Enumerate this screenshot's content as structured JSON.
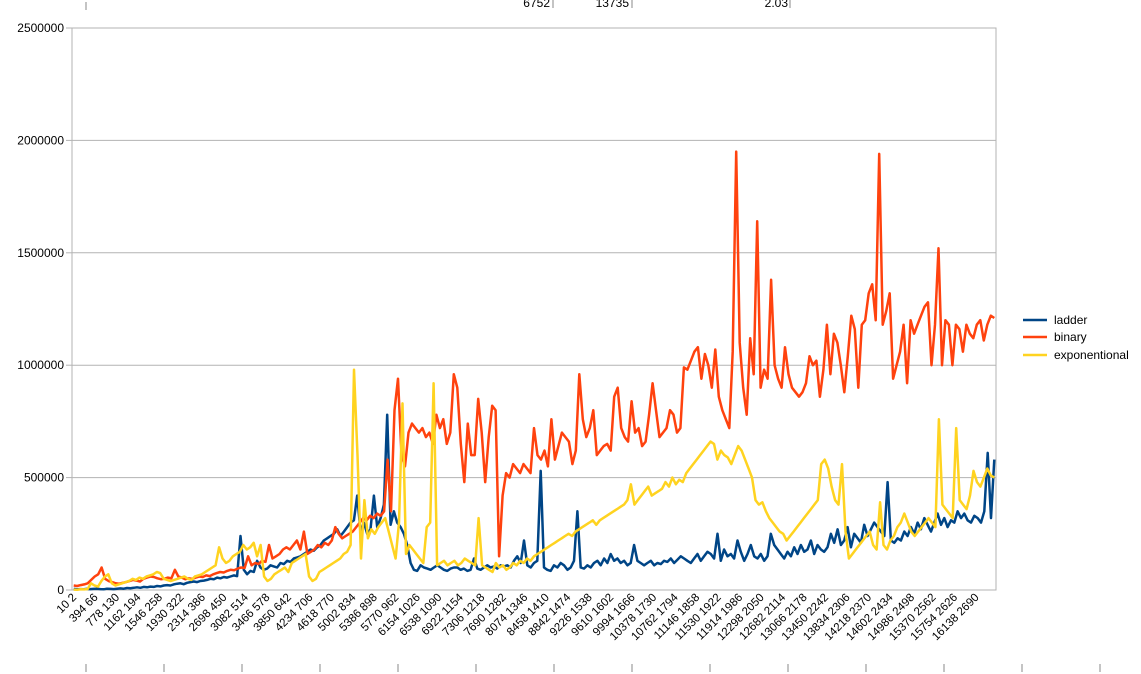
{
  "chart_data": {
    "type": "line",
    "title": "",
    "xlabel": "",
    "ylabel": "",
    "ylim": [
      0,
      2500000
    ],
    "yticks": [
      "0",
      "500000",
      "1000000",
      "1500000",
      "2000000",
      "2500000"
    ],
    "xtick_labels": [
      "10 2",
      "394 66",
      "778 130",
      "1162 194",
      "1546 258",
      "1930 322",
      "2314 386",
      "2698 450",
      "3082 514",
      "3466 578",
      "3850 642",
      "4234 706",
      "4618 770",
      "5002 834",
      "5386 898",
      "5770 962",
      "6154 1026",
      "6538 1090",
      "6922 1154",
      "7306 1218",
      "7690 1282",
      "8074 1346",
      "8458 1410",
      "8842 1474",
      "9226 1538",
      "9610 1602",
      "9994 1666",
      "10378 1730",
      "10762 1794",
      "11146 1858",
      "11530 1922",
      "11914 1986",
      "12298 2050",
      "12682 2114",
      "13066 2178",
      "13450 2242",
      "13834 2306",
      "14218 2370",
      "14602 2434",
      "14986 2498",
      "15370 2562",
      "15754 2626",
      "16138 2690"
    ],
    "top_labels": [
      "6752",
      "13735",
      "2.03"
    ],
    "grid": true,
    "legend_position": "right",
    "series": [
      {
        "name": "ladder",
        "color": "#004586",
        "values": [
          5000,
          3000,
          4000,
          3000,
          5000,
          4000,
          5000,
          6000,
          4000,
          3000,
          6000,
          5000,
          4000,
          6000,
          7000,
          6000,
          9000,
          8000,
          10000,
          12000,
          10000,
          14000,
          12000,
          15000,
          14000,
          18000,
          16000,
          20000,
          22000,
          20000,
          25000,
          28000,
          30000,
          26000,
          32000,
          35000,
          38000,
          35000,
          40000,
          42000,
          45000,
          50000,
          48000,
          55000,
          52000,
          58000,
          55000,
          60000,
          65000,
          62000,
          240000,
          90000,
          70000,
          85000,
          80000,
          130000,
          100000,
          90000,
          95000,
          110000,
          105000,
          100000,
          120000,
          115000,
          130000,
          125000,
          140000,
          145000,
          150000,
          160000,
          170000,
          180000,
          175000,
          190000,
          200000,
          220000,
          230000,
          240000,
          250000,
          270000,
          240000,
          260000,
          280000,
          300000,
          310000,
          420000,
          260000,
          300000,
          250000,
          270000,
          420000,
          280000,
          320000,
          380000,
          780000,
          290000,
          350000,
          300000,
          280000,
          250000,
          200000,
          120000,
          90000,
          85000,
          110000,
          100000,
          95000,
          90000,
          100000,
          110000,
          100000,
          90000,
          85000,
          95000,
          100000,
          100000,
          90000,
          95000,
          85000,
          90000,
          140000,
          95000,
          90000,
          100000,
          110000,
          100000,
          105000,
          95000,
          110000,
          105000,
          110000,
          100000,
          130000,
          150000,
          120000,
          220000,
          110000,
          100000,
          120000,
          130000,
          530000,
          100000,
          90000,
          85000,
          110000,
          100000,
          120000,
          110000,
          90000,
          100000,
          130000,
          350000,
          100000,
          95000,
          110000,
          100000,
          120000,
          130000,
          110000,
          140000,
          120000,
          160000,
          130000,
          140000,
          120000,
          130000,
          110000,
          120000,
          200000,
          130000,
          120000,
          110000,
          120000,
          130000,
          110000,
          120000,
          115000,
          130000,
          125000,
          140000,
          120000,
          135000,
          150000,
          140000,
          130000,
          120000,
          140000,
          160000,
          130000,
          150000,
          170000,
          160000,
          140000,
          250000,
          130000,
          180000,
          150000,
          160000,
          140000,
          220000,
          170000,
          130000,
          160000,
          200000,
          150000,
          140000,
          160000,
          130000,
          150000,
          250000,
          200000,
          180000,
          160000,
          140000,
          170000,
          150000,
          190000,
          160000,
          200000,
          170000,
          180000,
          220000,
          160000,
          200000,
          180000,
          170000,
          190000,
          250000,
          210000,
          270000,
          200000,
          220000,
          280000,
          190000,
          250000,
          230000,
          210000,
          290000,
          240000,
          270000,
          300000,
          280000,
          260000,
          240000,
          480000,
          220000,
          210000,
          230000,
          220000,
          260000,
          240000,
          280000,
          250000,
          300000,
          270000,
          320000,
          290000,
          260000,
          300000,
          340000,
          290000,
          320000,
          280000,
          310000,
          300000,
          350000,
          320000,
          340000,
          310000,
          300000,
          330000,
          320000,
          300000,
          350000,
          610000,
          320000,
          580000
        ]
      },
      {
        "name": "binary",
        "color": "#ff420e",
        "values": [
          20000,
          18000,
          22000,
          25000,
          30000,
          45000,
          60000,
          70000,
          100000,
          50000,
          40000,
          35000,
          30000,
          28000,
          32000,
          35000,
          40000,
          45000,
          42000,
          38000,
          50000,
          55000,
          60000,
          58000,
          52000,
          48000,
          50000,
          55000,
          52000,
          90000,
          60000,
          55000,
          48000,
          52000,
          50000,
          55000,
          60000,
          58000,
          65000,
          62000,
          70000,
          75000,
          80000,
          78000,
          85000,
          90000,
          88000,
          95000,
          100000,
          98000,
          150000,
          110000,
          120000,
          115000,
          130000,
          125000,
          200000,
          140000,
          150000,
          160000,
          180000,
          190000,
          180000,
          200000,
          220000,
          180000,
          260000,
          160000,
          170000,
          180000,
          200000,
          190000,
          210000,
          200000,
          220000,
          280000,
          250000,
          230000,
          240000,
          250000,
          260000,
          280000,
          300000,
          320000,
          310000,
          330000,
          320000,
          340000,
          330000,
          350000,
          580000,
          350000,
          800000,
          940000,
          600000,
          550000,
          700000,
          740000,
          720000,
          700000,
          720000,
          680000,
          700000,
          650000,
          780000,
          720000,
          760000,
          650000,
          700000,
          960000,
          900000,
          650000,
          480000,
          740000,
          600000,
          600000,
          850000,
          700000,
          480000,
          680000,
          820000,
          800000,
          150000,
          420000,
          520000,
          500000,
          560000,
          540000,
          520000,
          560000,
          540000,
          520000,
          720000,
          600000,
          580000,
          620000,
          550000,
          760000,
          580000,
          640000,
          700000,
          680000,
          660000,
          560000,
          620000,
          960000,
          760000,
          680000,
          720000,
          800000,
          600000,
          620000,
          640000,
          650000,
          620000,
          860000,
          900000,
          720000,
          680000,
          660000,
          840000,
          700000,
          720000,
          640000,
          660000,
          780000,
          920000,
          800000,
          680000,
          700000,
          720000,
          800000,
          780000,
          700000,
          720000,
          990000,
          980000,
          1020000,
          1060000,
          1080000,
          940000,
          1050000,
          1000000,
          900000,
          1070000,
          860000,
          800000,
          760000,
          720000,
          1060000,
          1950000,
          1100000,
          900000,
          780000,
          1120000,
          960000,
          1640000,
          900000,
          980000,
          940000,
          1380000,
          1000000,
          940000,
          900000,
          1080000,
          960000,
          900000,
          880000,
          860000,
          880000,
          920000,
          1040000,
          1000000,
          1020000,
          860000,
          980000,
          1180000,
          960000,
          1140000,
          1100000,
          1000000,
          880000,
          1040000,
          1220000,
          1160000,
          900000,
          1180000,
          1200000,
          1320000,
          1360000,
          1200000,
          1940000,
          1180000,
          1240000,
          1320000,
          940000,
          1000000,
          1060000,
          1180000,
          920000,
          1200000,
          1140000,
          1180000,
          1220000,
          1260000,
          1280000,
          1000000,
          1180000,
          1520000,
          1000000,
          1200000,
          1180000,
          1000000,
          1180000,
          1160000,
          1060000,
          1180000,
          1140000,
          1120000,
          1180000,
          1200000,
          1110000,
          1180000,
          1220000,
          1210000
        ]
      },
      {
        "name": "exponentional",
        "color": "#ffd320",
        "values": [
          2000,
          1500,
          3000,
          2500,
          4000,
          30000,
          20000,
          15000,
          40000,
          60000,
          70000,
          30000,
          20000,
          25000,
          30000,
          35000,
          40000,
          50000,
          45000,
          55000,
          50000,
          60000,
          65000,
          70000,
          80000,
          75000,
          50000,
          45000,
          40000,
          45000,
          50000,
          55000,
          60000,
          50000,
          45000,
          60000,
          65000,
          70000,
          80000,
          90000,
          100000,
          110000,
          190000,
          140000,
          120000,
          130000,
          150000,
          160000,
          170000,
          200000,
          180000,
          190000,
          210000,
          150000,
          200000,
          60000,
          40000,
          50000,
          70000,
          80000,
          90000,
          100000,
          80000,
          120000,
          130000,
          140000,
          150000,
          160000,
          60000,
          40000,
          50000,
          80000,
          90000,
          100000,
          110000,
          120000,
          130000,
          140000,
          160000,
          170000,
          200000,
          980000,
          600000,
          140000,
          400000,
          230000,
          270000,
          250000,
          280000,
          300000,
          320000,
          260000,
          200000,
          140000,
          300000,
          830000,
          160000,
          200000,
          180000,
          160000,
          140000,
          120000,
          280000,
          300000,
          920000,
          110000,
          120000,
          130000,
          110000,
          120000,
          130000,
          110000,
          120000,
          140000,
          130000,
          120000,
          110000,
          320000,
          110000,
          100000,
          90000,
          80000,
          120000,
          100000,
          110000,
          90000,
          100000,
          120000,
          110000,
          130000,
          120000,
          140000,
          130000,
          150000,
          160000,
          170000,
          180000,
          190000,
          200000,
          210000,
          220000,
          230000,
          240000,
          250000,
          240000,
          260000,
          270000,
          280000,
          290000,
          300000,
          310000,
          290000,
          310000,
          320000,
          330000,
          340000,
          350000,
          360000,
          370000,
          380000,
          400000,
          470000,
          380000,
          400000,
          420000,
          440000,
          460000,
          420000,
          430000,
          440000,
          450000,
          480000,
          460000,
          500000,
          470000,
          490000,
          480000,
          520000,
          540000,
          560000,
          580000,
          600000,
          620000,
          640000,
          660000,
          650000,
          580000,
          620000,
          600000,
          590000,
          560000,
          600000,
          640000,
          620000,
          580000,
          540000,
          500000,
          400000,
          380000,
          390000,
          350000,
          320000,
          300000,
          280000,
          260000,
          250000,
          220000,
          240000,
          260000,
          280000,
          300000,
          320000,
          340000,
          360000,
          380000,
          400000,
          560000,
          580000,
          540000,
          460000,
          400000,
          380000,
          560000,
          260000,
          140000,
          160000,
          180000,
          200000,
          220000,
          240000,
          260000,
          200000,
          180000,
          390000,
          200000,
          180000,
          220000,
          240000,
          280000,
          300000,
          340000,
          300000,
          260000,
          240000,
          260000,
          280000,
          300000,
          320000,
          300000,
          280000,
          760000,
          380000,
          360000,
          340000,
          320000,
          720000,
          400000,
          380000,
          360000,
          420000,
          530000,
          480000,
          460000,
          500000,
          540000,
          510000,
          500000
        ]
      }
    ]
  }
}
